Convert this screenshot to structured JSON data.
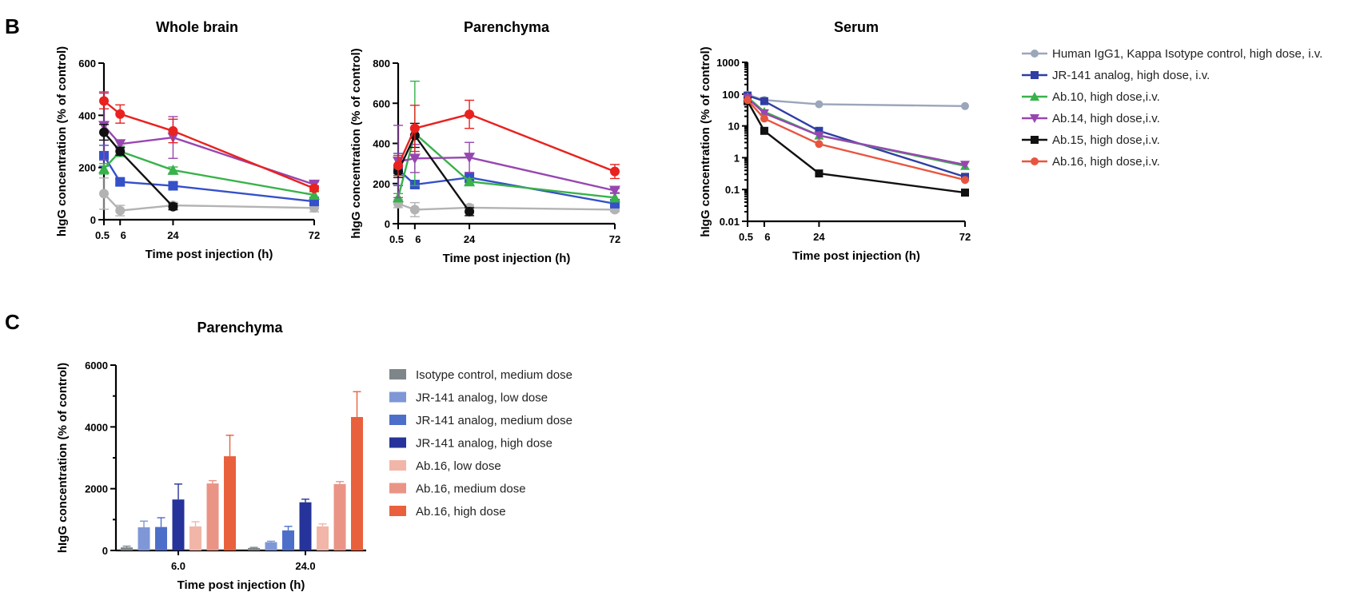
{
  "panels": {
    "b": "B",
    "c": "C"
  },
  "legend_line": [
    {
      "label": "Human IgG1, Kappa Isotype control, high dose, i.v.",
      "color": "#9ba6ba",
      "marker": "circle"
    },
    {
      "label": "JR-141 analog, high dose, i.v.",
      "color": "#2f3ea3",
      "marker": "square"
    },
    {
      "label": "Ab.10, high dose,i.v.",
      "color": "#38b24a",
      "marker": "triangle-up"
    },
    {
      "label": "Ab.14, high dose,i.v.",
      "color": "#9746b0",
      "marker": "triangle-down"
    },
    {
      "label": "Ab.15, high dose,i.v.",
      "color": "#111111",
      "marker": "square"
    },
    {
      "label": "Ab.16, high dose,i.v.",
      "color": "#e8553e",
      "marker": "circle"
    }
  ],
  "chart_data": [
    {
      "type": "line",
      "title": "Whole brain",
      "xlabel": "Time post injection (h)",
      "ylabel": "hIgG concentration (% of control)",
      "xlim": [
        0.5,
        72
      ],
      "ylim": [
        0,
        600
      ],
      "x_ticks": [
        "0.5",
        "6",
        "24",
        "72"
      ],
      "y_ticks": [
        "0",
        "200",
        "400",
        "600"
      ],
      "series": [
        {
          "name": "Human IgG1, Kappa Isotype control, high dose, i.v.",
          "color": "#b3b3b3",
          "marker": "circle",
          "x": [
            0.5,
            6,
            24,
            72
          ],
          "y": [
            100,
            35,
            55,
            45
          ],
          "err": [
            60,
            20,
            12,
            15
          ]
        },
        {
          "name": "JR-141 analog, high dose, i.v.",
          "color": "#3550c8",
          "marker": "square",
          "x": [
            0.5,
            6,
            24,
            72
          ],
          "y": [
            245,
            145,
            130,
            70
          ],
          "err": [
            40,
            12,
            10,
            10
          ]
        },
        {
          "name": "Ab.10, high dose,i.v.",
          "color": "#38b24a",
          "marker": "triangle-up",
          "x": [
            0.5,
            6,
            24,
            72
          ],
          "y": [
            195,
            262,
            190,
            95
          ],
          "err": [
            20,
            20,
            12,
            12
          ]
        },
        {
          "name": "Ab.14, high dose,i.v.",
          "color": "#9746b0",
          "marker": "triangle-down",
          "x": [
            0.5,
            6,
            24,
            72
          ],
          "y": [
            360,
            290,
            315,
            135
          ],
          "err": [
            130,
            15,
            80,
            10
          ]
        },
        {
          "name": "Ab.15, high dose,i.v.",
          "color": "#111111",
          "marker": "circle",
          "x": [
            0.5,
            6,
            24
          ],
          "y": [
            335,
            262,
            50
          ],
          "err": [
            30,
            15,
            12
          ]
        },
        {
          "name": "Ab.16, high dose,i.v.",
          "color": "#e8221f",
          "marker": "circle",
          "x": [
            0.5,
            6,
            24,
            72
          ],
          "y": [
            455,
            405,
            340,
            120
          ],
          "err": [
            30,
            35,
            45,
            10
          ]
        }
      ]
    },
    {
      "type": "line",
      "title": "Parenchyma",
      "xlabel": "Time post injection (h)",
      "ylabel": "hIgG concentration (% of control)",
      "xlim": [
        0.5,
        72
      ],
      "ylim": [
        0,
        800
      ],
      "x_ticks": [
        "0.5",
        "6",
        "24",
        "72"
      ],
      "y_ticks": [
        "0",
        "200",
        "400",
        "600",
        "800"
      ],
      "series": [
        {
          "name": "Human IgG1, Kappa Isotype control, high dose, i.v.",
          "color": "#b3b3b3",
          "marker": "circle",
          "x": [
            0.5,
            6,
            24,
            72
          ],
          "y": [
            100,
            70,
            80,
            70
          ],
          "err": [
            20,
            35,
            15,
            10
          ]
        },
        {
          "name": "JR-141 analog, high dose, i.v.",
          "color": "#3550c8",
          "marker": "square",
          "x": [
            0.5,
            6,
            24,
            72
          ],
          "y": [
            270,
            195,
            230,
            100
          ],
          "err": [
            80,
            15,
            25,
            20
          ]
        },
        {
          "name": "Ab.10, high dose,i.v.",
          "color": "#38b24a",
          "marker": "triangle-up",
          "x": [
            0.5,
            6,
            24,
            72
          ],
          "y": [
            130,
            450,
            210,
            130
          ],
          "err": [
            20,
            260,
            15,
            20
          ]
        },
        {
          "name": "Ab.14, high dose,i.v.",
          "color": "#9746b0",
          "marker": "triangle-down",
          "x": [
            0.5,
            6,
            24,
            72
          ],
          "y": [
            310,
            325,
            330,
            165
          ],
          "err": [
            180,
            70,
            75,
            10
          ]
        },
        {
          "name": "Ab.15, high dose,i.v.",
          "color": "#111111",
          "marker": "circle",
          "x": [
            0.5,
            6,
            24
          ],
          "y": [
            260,
            440,
            60
          ],
          "err": [
            30,
            60,
            20
          ]
        },
        {
          "name": "Ab.16, high dose,i.v.",
          "color": "#e8221f",
          "marker": "circle",
          "x": [
            0.5,
            6,
            24,
            72
          ],
          "y": [
            290,
            475,
            545,
            260
          ],
          "err": [
            50,
            115,
            70,
            35
          ]
        }
      ]
    },
    {
      "type": "line",
      "title": "Serum",
      "xlabel": "Time post injection (h)",
      "ylabel": "hIgG concentration (% of control)",
      "yscale": "log",
      "xlim": [
        0.5,
        72
      ],
      "ylim": [
        0.01,
        1000
      ],
      "x_ticks": [
        "0.5",
        "6",
        "24",
        "72"
      ],
      "y_ticks": [
        "0.01",
        "0.1",
        "1",
        "10",
        "100",
        "1000"
      ],
      "series": [
        {
          "name": "Human IgG1, Kappa Isotype control, high dose, i.v.",
          "color": "#9ba6ba",
          "marker": "circle",
          "x": [
            0.5,
            6,
            24,
            72
          ],
          "y": [
            95,
            65,
            48,
            42
          ]
        },
        {
          "name": "JR-141 analog, high dose, i.v.",
          "color": "#2f3ea3",
          "marker": "square",
          "x": [
            0.5,
            6,
            24,
            72
          ],
          "y": [
            90,
            60,
            7,
            0.25
          ]
        },
        {
          "name": "Ab.10, high dose,i.v.",
          "color": "#38b24a",
          "marker": "triangle-up",
          "x": [
            0.5,
            6,
            24,
            72
          ],
          "y": [
            80,
            28,
            5,
            0.55
          ]
        },
        {
          "name": "Ab.14, high dose,i.v.",
          "color": "#9746b0",
          "marker": "triangle-down",
          "x": [
            0.5,
            6,
            24,
            72
          ],
          "y": [
            75,
            25,
            5,
            0.6
          ]
        },
        {
          "name": "Ab.15, high dose,i.v.",
          "color": "#111111",
          "marker": "square",
          "x": [
            0.5,
            6,
            24,
            72
          ],
          "y": [
            60,
            7,
            0.32,
            0.08
          ]
        },
        {
          "name": "Ab.16, high dose,i.v.",
          "color": "#e8553e",
          "marker": "circle",
          "x": [
            0.5,
            6,
            24,
            72
          ],
          "y": [
            65,
            17,
            2.7,
            0.2
          ]
        }
      ]
    },
    {
      "type": "bar",
      "title": "Parenchyma",
      "xlabel": "Time post injection (h)",
      "ylabel": "hIgG concentration (% of control)",
      "ylim": [
        0,
        6000
      ],
      "categories": [
        "6.0",
        "24.0"
      ],
      "y_ticks": [
        "0",
        "2000",
        "4000",
        "6000"
      ],
      "series": [
        {
          "name": "Isotype control, medium dose",
          "color": "#7f8689",
          "values": [
            100,
            80
          ],
          "err": [
            40,
            20
          ]
        },
        {
          "name": "JR-141 analog, low dose",
          "color": "#7f97d6",
          "values": [
            750,
            270
          ],
          "err": [
            200,
            30
          ]
        },
        {
          "name": "JR-141 analog, medium dose",
          "color": "#4d6fc9",
          "values": [
            760,
            650
          ],
          "err": [
            300,
            130
          ]
        },
        {
          "name": "JR-141 analog, high dose",
          "color": "#25339a",
          "values": [
            1650,
            1560
          ],
          "err": [
            500,
            100
          ]
        },
        {
          "name": "Ab.16, low dose",
          "color": "#f2b6a8",
          "values": [
            780,
            780
          ],
          "err": [
            150,
            80
          ]
        },
        {
          "name": "Ab.16, medium dose",
          "color": "#ea9486",
          "values": [
            2170,
            2150
          ],
          "err": [
            90,
            80
          ]
        },
        {
          "name": "Ab.16, high dose",
          "color": "#e9603d",
          "values": [
            3050,
            4320
          ],
          "err": [
            680,
            820
          ]
        }
      ]
    }
  ]
}
